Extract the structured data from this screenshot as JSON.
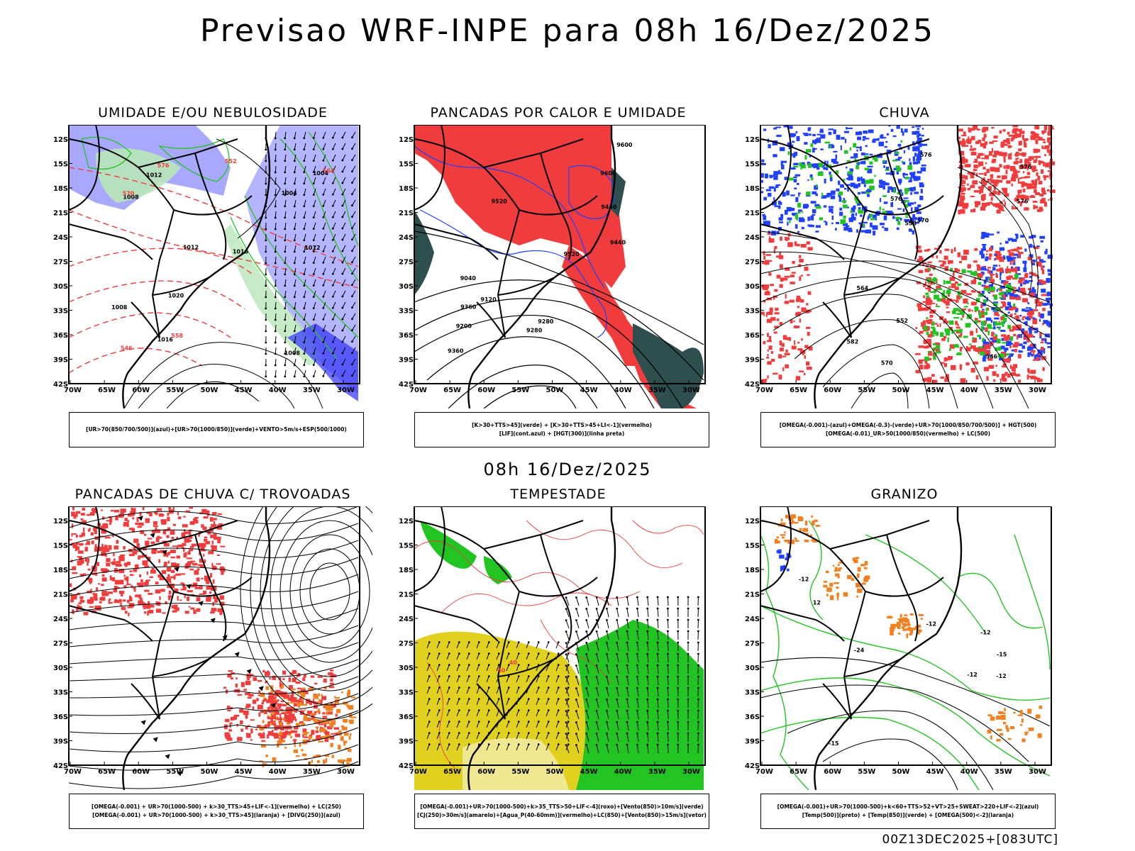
{
  "header": {
    "title": "Previsao WRF-INPE  para 08h 16/Dez/2025"
  },
  "middle_title": "08h 16/Dez/2025",
  "footer": "00Z13DEC2025+[083UTC]",
  "axes": {
    "lat_labels": [
      "12S",
      "15S",
      "18S",
      "21S",
      "24S",
      "27S",
      "30S",
      "33S",
      "36S",
      "39S",
      "42S"
    ],
    "lon_labels": [
      "70W",
      "65W",
      "60W",
      "55W",
      "50W",
      "45W",
      "40W",
      "35W",
      "30W"
    ]
  },
  "colors": {
    "red": "#f03c3c",
    "green": "#22c422",
    "blue": "#2040ff",
    "lavender": "#a8a8ff",
    "dark_teal": "#2f4f4f",
    "yellow": "#e0d020",
    "orange": "#f08020",
    "black": "#000000"
  },
  "panels": [
    {
      "title": "UMIDADE E/OU NEBULOSIDADE",
      "legend_line1": "[UR>70(850/700/500)](azul)+[UR>70(1000/850)](verde)+VENTO>5m/s+ESP(500/1000)",
      "legend_line2": "",
      "contour_labels": [
        "1012",
        "1012",
        "1012",
        "1008",
        "1008",
        "1008",
        "1016",
        "1016",
        "1020",
        "1004",
        "1004",
        "576",
        "570",
        "564",
        "558",
        "552",
        "546"
      ]
    },
    {
      "title": "PANCADAS POR CALOR E UMIDADE",
      "legend_line1": "[K>30+TTS>45](verde) + [K>30+TTS>45+LI<-1](vermelho)",
      "legend_line2": "[LIF](cont.azul) + [HGT(300)](linha preta)",
      "contour_labels": [
        "9600",
        "9520",
        "9440",
        "9600",
        "9520",
        "9440",
        "9360",
        "9280",
        "9200",
        "9120",
        "9040",
        "9360",
        "9280"
      ]
    },
    {
      "title": "CHUVA",
      "legend_line1": "[OMEGA(-0.001)-(azul)+OMEGA(-0.3)-(verde)+UR>70(1000/850/700/500)] + HGT(500)",
      "legend_line2": "[OMEGA(-0.01)_UR>50(1000/850)(vermelho) + LC(500)",
      "contour_labels": [
        "582",
        "576",
        "576",
        "570",
        "576",
        "564",
        "558",
        "552",
        "546",
        "576",
        "570"
      ]
    },
    {
      "title": "PANCADAS DE CHUVA C/ TROVOADAS",
      "legend_line1": "[OMEGA(-0.001) + UR>70(1000-500) + k>30_TTS>45+LIF<-1](vermelho) + LC(250)",
      "legend_line2": "[OMEGA(-0.001) + UR>70(1000-500) + k>30_TTS>45](laranja) + [DIVG(250)](azul)",
      "contour_labels": []
    },
    {
      "title": "TEMPESTADE",
      "legend_line1": "[OMEGA(-0.001)+UR>70(1000-500)+k>35_TTS>50+LIF<-4](roxo)+[Vento(850)>10m/s](verde)",
      "legend_line2": "[CJ(250)>30m/s](amarelo)+[Agua_P(40-60mm)](vermelho)+LC(850)+[Vento(850)>15m/s](vetor)",
      "contour_labels": [
        "40",
        "40"
      ]
    },
    {
      "title": "GRANIZO",
      "legend_line1": "[OMEGA(-0.001)+UR>70(1000-500)+k<60+TTS>52+VT>25+SWEAT>220+LIF<-2](azul)",
      "legend_line2": "[Temp(500)](preto) + [Temp(850)](verde) + [OMEGA(500)<-2](laranja)",
      "contour_labels": [
        "-12",
        "-12",
        "-15",
        "-15",
        "-24",
        "-12",
        "-12",
        "-12",
        "12"
      ]
    }
  ]
}
